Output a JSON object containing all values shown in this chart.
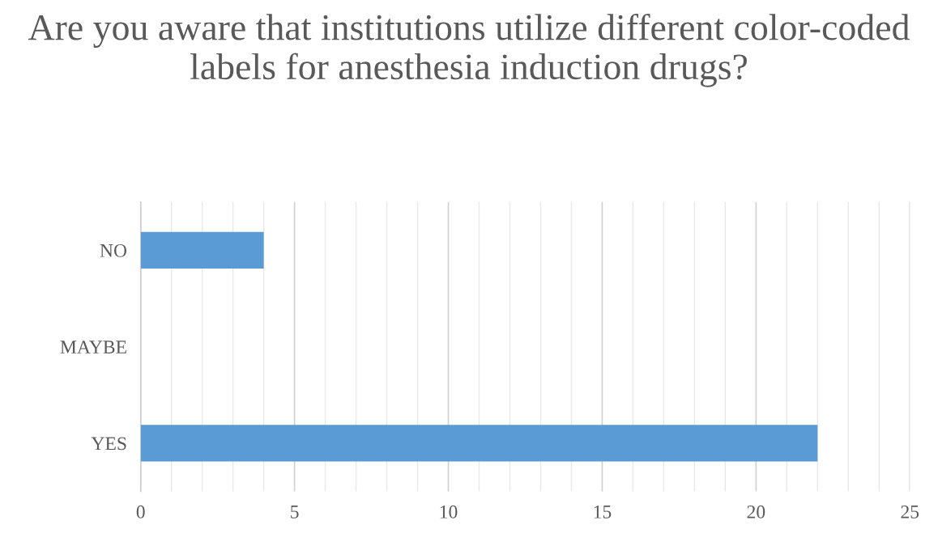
{
  "chart_data": {
    "type": "bar",
    "orientation": "horizontal",
    "title": "Are you aware that institutions utilize different color-coded labels for anesthesia induction drugs?",
    "categories": [
      "NO",
      "MAYBE",
      "YES"
    ],
    "values": [
      4,
      0,
      22
    ],
    "color": "#5b9bd5",
    "xlim": [
      0,
      25
    ],
    "xticks": [
      0,
      5,
      10,
      15,
      20,
      25
    ],
    "grid": "x",
    "legend": false
  }
}
